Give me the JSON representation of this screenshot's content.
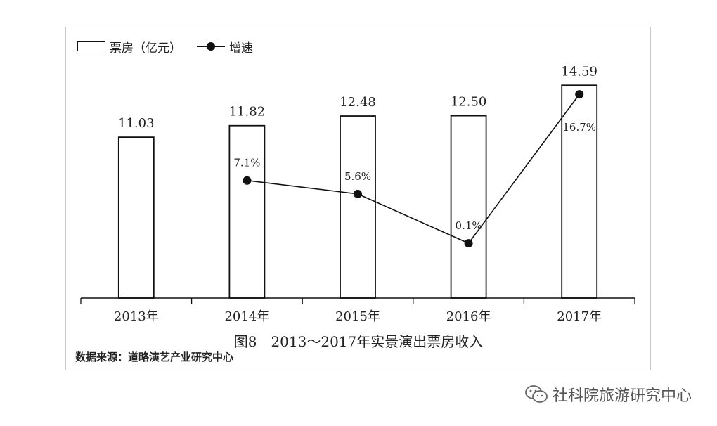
{
  "legend": {
    "bar_label": "票房（亿元）",
    "line_label": "增速"
  },
  "caption": "图8　2013～2017年实景演出票房收入",
  "source": "数据来源：道略演艺产业研究中心",
  "watermark": {
    "text": "社科院旅游研究中心",
    "icon": "wechat-icon"
  },
  "colors": {
    "bar_stroke": "#111111",
    "bar_fill": "#ffffff",
    "line": "#111111",
    "axis": "#111111",
    "frame": "#c8c8c8"
  },
  "chart_data": {
    "type": "bar",
    "categories": [
      "2013年",
      "2014年",
      "2015年",
      "2016年",
      "2017年"
    ],
    "series": [
      {
        "name": "票房（亿元）",
        "type": "bar",
        "values": [
          11.03,
          11.82,
          12.48,
          12.5,
          14.59
        ],
        "labels": [
          "11.03",
          "11.82",
          "12.48",
          "12.50",
          "14.59"
        ]
      },
      {
        "name": "增速",
        "type": "line",
        "values": [
          null,
          7.1,
          5.6,
          0.1,
          16.7
        ],
        "labels": [
          "",
          "7.1%",
          "5.6%",
          "0.1%",
          "16.7%"
        ]
      }
    ],
    "bar_axis_range": [
      0,
      16
    ],
    "line_axis_range": [
      -6,
      20
    ],
    "grid": false,
    "legend_position": "top-left"
  }
}
